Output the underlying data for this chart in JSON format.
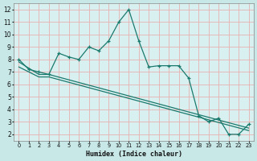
{
  "xlabel": "Humidex (Indice chaleur)",
  "background_color": "#c8e8e8",
  "plot_bg_color": "#d8f0f0",
  "grid_color": "#e8b0b0",
  "line_color": "#1a7a6e",
  "xlim": [
    -0.5,
    23.5
  ],
  "ylim": [
    1.5,
    12.5
  ],
  "xticks": [
    0,
    1,
    2,
    3,
    4,
    5,
    6,
    7,
    8,
    9,
    10,
    11,
    12,
    13,
    14,
    15,
    16,
    17,
    18,
    19,
    20,
    21,
    22,
    23
  ],
  "yticks": [
    2,
    3,
    4,
    5,
    6,
    7,
    8,
    9,
    10,
    11,
    12
  ],
  "curve1_x": [
    0,
    1,
    2,
    3,
    4,
    5,
    6,
    7,
    8,
    9,
    10,
    11,
    12,
    13,
    14,
    15,
    16,
    17,
    18,
    19,
    20,
    21,
    22,
    23
  ],
  "curve1_y": [
    8.0,
    7.2,
    7.0,
    6.8,
    8.5,
    8.2,
    8.0,
    9.0,
    8.7,
    9.5,
    11.0,
    12.0,
    9.5,
    7.4,
    7.5,
    7.5,
    7.5,
    6.5,
    3.5,
    3.0,
    3.3,
    2.0,
    2.0,
    2.8
  ],
  "curve2_x": [
    0,
    2,
    3,
    23
  ],
  "curve2_y": [
    7.8,
    6.8,
    6.8,
    2.5
  ],
  "curve3_x": [
    0,
    2,
    3,
    23
  ],
  "curve3_y": [
    7.4,
    6.6,
    6.6,
    2.3
  ]
}
